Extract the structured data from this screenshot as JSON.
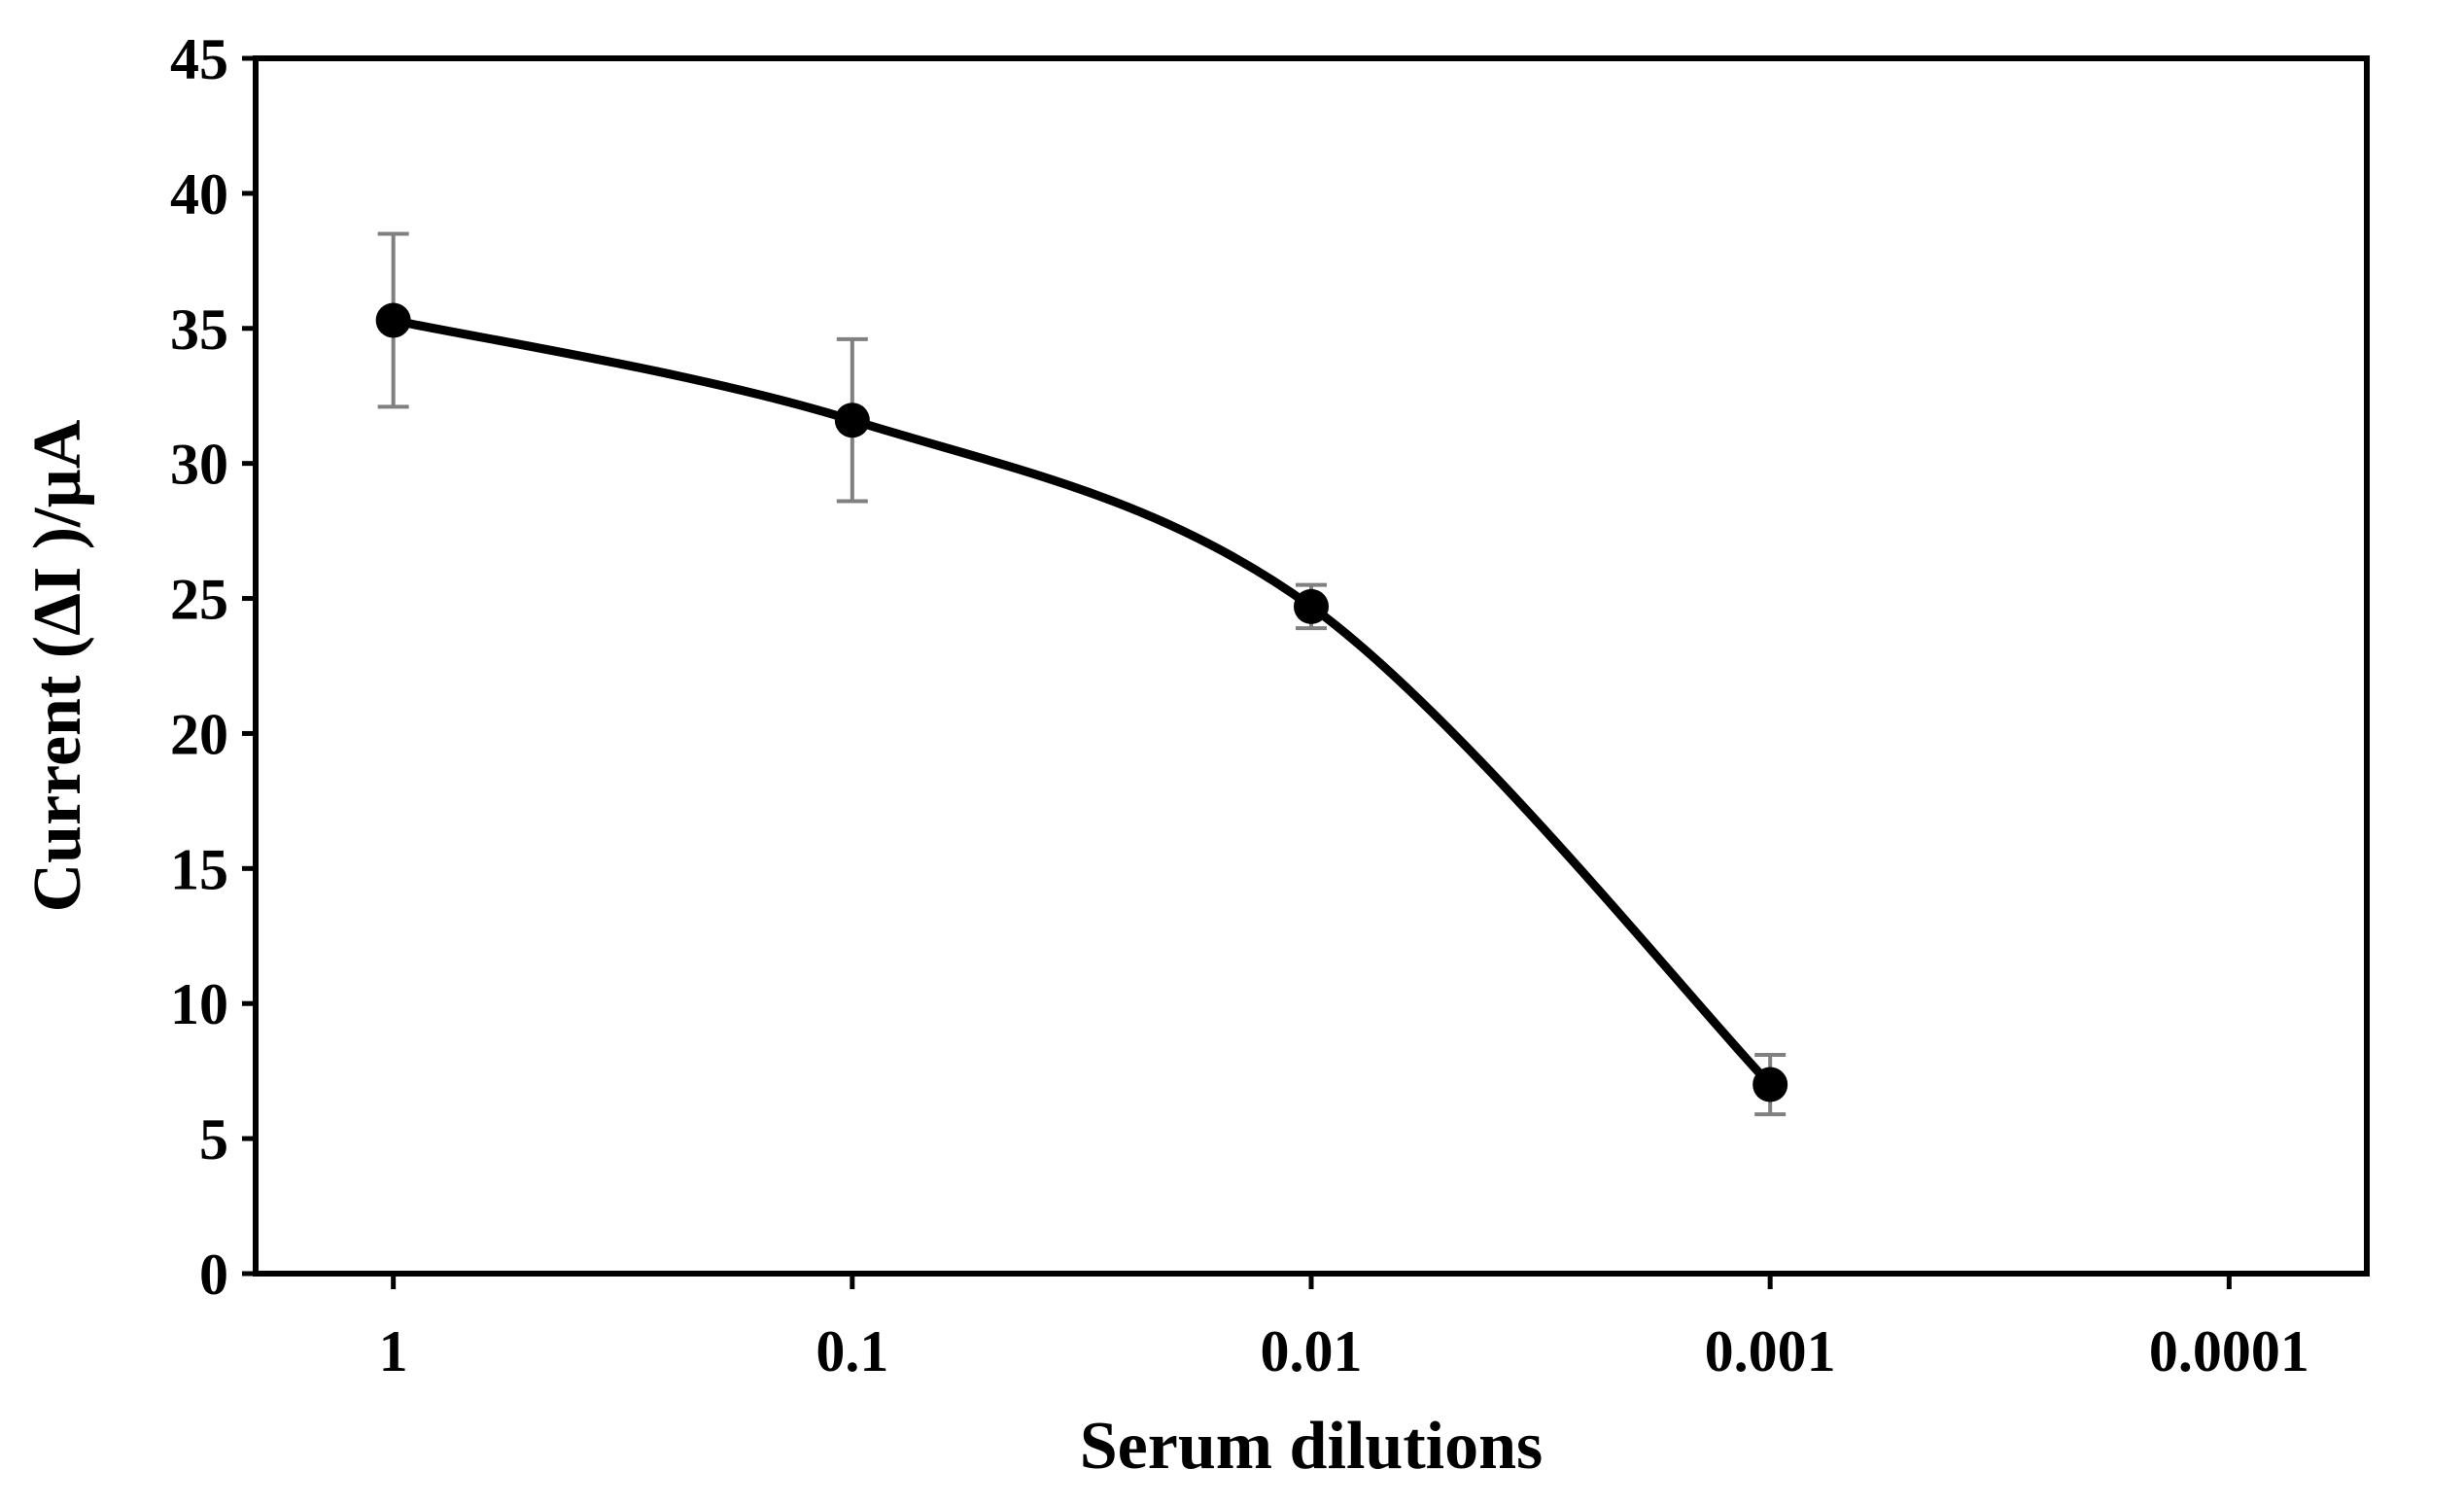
{
  "chart_data": {
    "type": "line",
    "title": "",
    "xlabel": "Serum dilutions",
    "ylabel": "Current (ΔI )/µA",
    "x_scale": "log",
    "x_reversed": true,
    "x_ticks": [
      1,
      0.1,
      0.01,
      0.001,
      0.0001
    ],
    "x_tick_labels": [
      "1",
      "0.1",
      "0.01",
      "0.001",
      "0.0001"
    ],
    "ylim": [
      0,
      45
    ],
    "y_ticks": [
      0,
      5,
      10,
      15,
      20,
      25,
      30,
      35,
      40,
      45
    ],
    "y_tick_labels": [
      "0",
      "5",
      "10",
      "15",
      "20",
      "25",
      "30",
      "35",
      "40",
      "45"
    ],
    "grid": false,
    "legend": "none",
    "line_color": "#000000",
    "error_bar_color": "#808080",
    "series": [
      {
        "x": [
          1,
          0.1,
          0.01,
          0.001
        ],
        "y": [
          35.3,
          31.6,
          24.7,
          7.0
        ],
        "error": [
          3.2,
          3.0,
          0.8,
          1.1
        ]
      }
    ]
  }
}
